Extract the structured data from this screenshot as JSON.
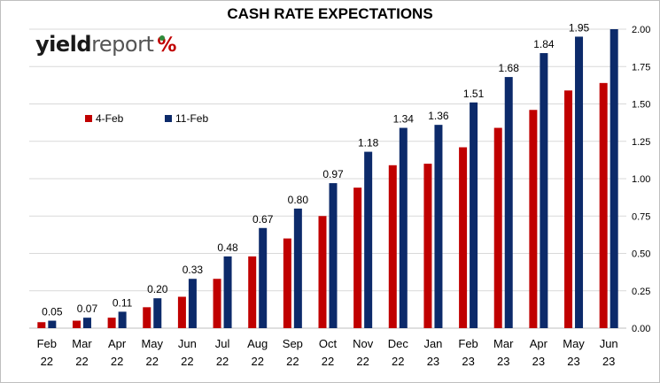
{
  "chart_data": {
    "type": "bar",
    "title": "CASH RATE EXPECTATIONS",
    "categories": [
      [
        "Feb",
        "22"
      ],
      [
        "Mar",
        "22"
      ],
      [
        "Apr",
        "22"
      ],
      [
        "May",
        "22"
      ],
      [
        "Jun",
        "22"
      ],
      [
        "Jul",
        "22"
      ],
      [
        "Aug",
        "22"
      ],
      [
        "Sep",
        "22"
      ],
      [
        "Oct",
        "22"
      ],
      [
        "Nov",
        "22"
      ],
      [
        "Dec",
        "22"
      ],
      [
        "Jan",
        "23"
      ],
      [
        "Feb",
        "23"
      ],
      [
        "Mar",
        "23"
      ],
      [
        "Apr",
        "23"
      ],
      [
        "May",
        "23"
      ],
      [
        "Jun",
        "23"
      ]
    ],
    "series": [
      {
        "name": "4-Feb",
        "color": "#c00000",
        "values": [
          0.04,
          0.05,
          0.07,
          0.14,
          0.21,
          0.33,
          0.48,
          0.6,
          0.75,
          0.94,
          1.09,
          1.1,
          1.21,
          1.34,
          1.46,
          1.59,
          1.64
        ]
      },
      {
        "name": "11-Feb",
        "color": "#0c2a6a",
        "values": [
          0.05,
          0.07,
          0.11,
          0.2,
          0.33,
          0.48,
          0.67,
          0.8,
          0.97,
          1.18,
          1.34,
          1.36,
          1.51,
          1.68,
          1.84,
          1.95,
          2.0
        ],
        "data_labels": [
          "0.05",
          "0.07",
          "0.11",
          "0.20",
          "0.33",
          "0.48",
          "0.67",
          "0.80",
          "0.97",
          "1.18",
          "1.34",
          "1.36",
          "1.51",
          "1.68",
          "1.84",
          "1.95",
          ""
        ]
      }
    ],
    "ylim": [
      0,
      2.0
    ],
    "yticks": [
      "0.00",
      "0.25",
      "0.50",
      "0.75",
      "1.00",
      "1.25",
      "1.50",
      "1.75",
      "2.00"
    ],
    "y_axis_position": "right",
    "grid": true,
    "legend_position": "top-left"
  },
  "logo": {
    "part1": "yield",
    "part2": "report",
    "symbol": "%"
  }
}
